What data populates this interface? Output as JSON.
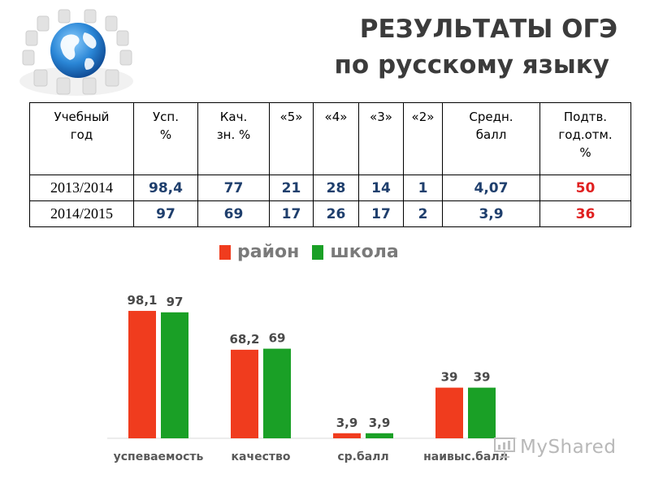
{
  "title": {
    "line1": "РЕЗУЛЬТАТЫ ОГЭ",
    "line2": "по русскому языку"
  },
  "table": {
    "headers": [
      [
        "Учебный",
        "год"
      ],
      [
        "Усп.",
        "%"
      ],
      [
        "Кач.",
        "зн. %"
      ],
      [
        "«5»"
      ],
      [
        "«4»"
      ],
      [
        "«3»"
      ],
      [
        "«2»"
      ],
      [
        "Средн.",
        "балл"
      ],
      [
        "Подтв.",
        "год.отм.",
        "%"
      ]
    ],
    "rows": [
      [
        "2013/2014",
        "98,4",
        "77",
        "21",
        "28",
        "14",
        "1",
        "4,07",
        "50"
      ],
      [
        "2014/2015",
        "97",
        "69",
        "17",
        "26",
        "17",
        "2",
        "3,9",
        "36"
      ]
    ]
  },
  "legend": [
    {
      "label": "район",
      "color": "#f03c1e"
    },
    {
      "label": "школа",
      "color": "#1aa026"
    }
  ],
  "chart_data": {
    "type": "bar",
    "categories": [
      "успеваемость",
      "качество",
      "ср.балл",
      "наивыс.балл"
    ],
    "series": [
      {
        "name": "район",
        "values": [
          98.1,
          68.2,
          3.9,
          39
        ],
        "labels": [
          "98,1",
          "68,2",
          "3,9",
          "39"
        ],
        "color": "#f03c1e"
      },
      {
        "name": "школа",
        "values": [
          97,
          69,
          3.9,
          39
        ],
        "labels": [
          "97",
          "69",
          "3,9",
          "39"
        ],
        "color": "#1aa026"
      }
    ],
    "ylim": [
      0,
      100
    ],
    "grid": false,
    "legend_position": "top"
  },
  "watermark": {
    "text": "MyShared"
  },
  "icons": {
    "logo": "globe-with-chairs-icon",
    "watermark": "presentation-board-icon"
  }
}
